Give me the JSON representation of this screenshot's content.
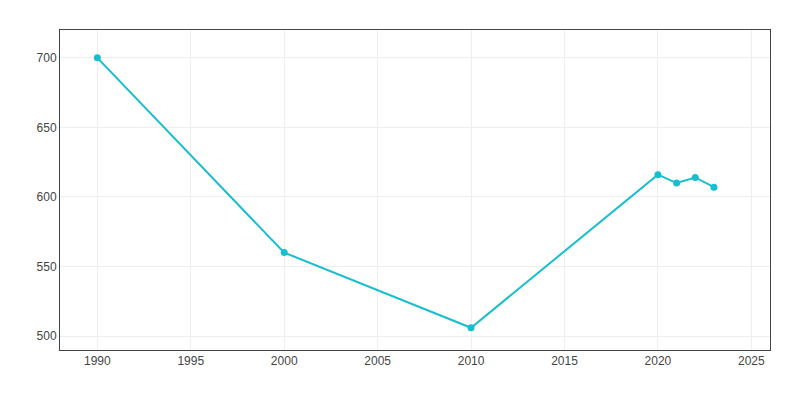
{
  "chart_data": {
    "type": "line",
    "x": [
      1990,
      2000,
      2010,
      2020,
      2021,
      2022,
      2023
    ],
    "values": [
      700,
      560,
      506,
      616,
      610,
      614,
      607
    ],
    "color": "#17becf",
    "marker": "circle",
    "xlim": [
      1988,
      2026
    ],
    "ylim": [
      490,
      720
    ],
    "xticks": [
      1990,
      1995,
      2000,
      2005,
      2010,
      2015,
      2020,
      2025
    ],
    "yticks": [
      500,
      550,
      600,
      650,
      700
    ],
    "grid": true
  }
}
